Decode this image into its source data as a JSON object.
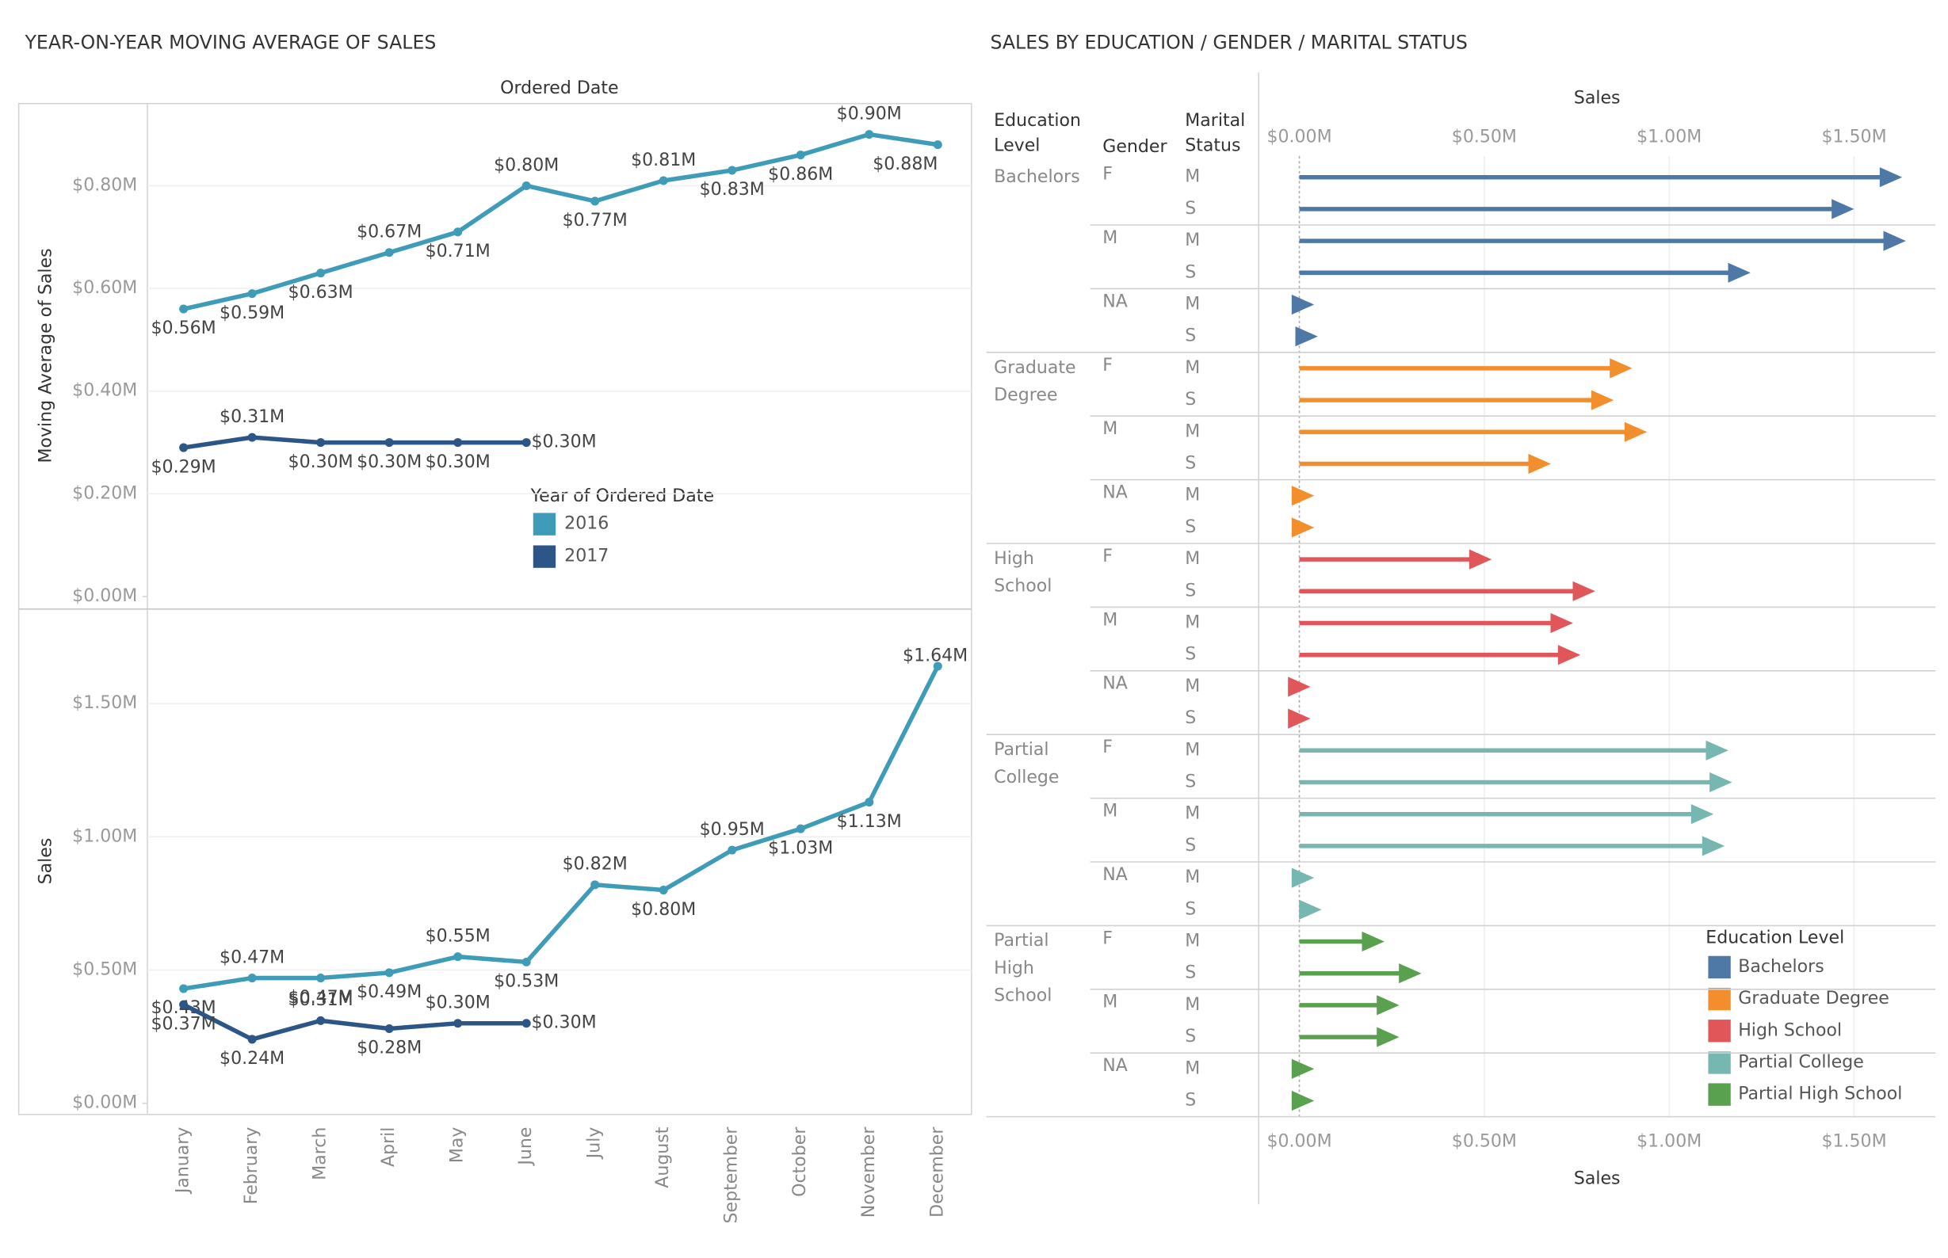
{
  "chart_data": [
    {
      "type": "line",
      "title": "YEAR-ON-YEAR MOVING AVERAGE OF SALES",
      "xlabel": "Ordered Date",
      "ylabel": "Moving Average of Sales",
      "legend_title": "Year of Ordered Date",
      "series": [
        {
          "name": "2016",
          "color": "#3f9cb8",
          "values": [
            0.56,
            0.59,
            0.63,
            0.67,
            0.71,
            0.8,
            0.77,
            0.81,
            0.83,
            0.86,
            0.9,
            0.88
          ],
          "value_labels": [
            "$0.56M",
            "$0.59M",
            "$0.63M",
            "$0.67M",
            "$0.71M",
            "$0.80M",
            "$0.77M",
            "$0.81M",
            "$0.83M",
            "$0.86M",
            "$0.90M",
            "$0.88M"
          ]
        },
        {
          "name": "2017",
          "color": "#2b5687",
          "values": [
            0.29,
            0.31,
            0.3,
            0.3,
            0.3,
            0.3,
            null,
            null,
            null,
            null,
            null,
            null
          ],
          "value_labels": [
            "$0.29M",
            "$0.31M",
            "$0.30M",
            "$0.30M",
            "$0.30M",
            "$0.30M",
            null,
            null,
            null,
            null,
            null,
            null
          ]
        }
      ],
      "ylim": [
        0,
        0.96
      ],
      "yticks": [
        {
          "value": 0,
          "label": "$0.00M"
        },
        {
          "value": 0.2,
          "label": "$0.20M"
        },
        {
          "value": 0.4,
          "label": "$0.40M"
        },
        {
          "value": 0.6,
          "label": "$0.60M"
        },
        {
          "value": 0.8,
          "label": "$0.80M"
        }
      ],
      "grid": true
    },
    {
      "type": "line",
      "ylabel": "Sales",
      "categories": [
        "January",
        "February",
        "March",
        "April",
        "May",
        "June",
        "July",
        "August",
        "September",
        "October",
        "November",
        "December"
      ],
      "series": [
        {
          "color": "#3f9cb8",
          "values": [
            0.43,
            0.47,
            0.47,
            0.49,
            0.55,
            0.53,
            0.82,
            0.8,
            0.95,
            1.03,
            1.13,
            1.64
          ],
          "value_labels": [
            "$0.43M",
            "$0.47M",
            "$0.47M",
            "$0.49M",
            "$0.55M",
            "$0.53M",
            "$0.82M",
            "$0.80M",
            "$0.95M",
            "$1.03M",
            "$1.13M",
            "$1.64M"
          ]
        },
        {
          "color": "#2b5687",
          "values": [
            0.37,
            0.24,
            0.31,
            0.28,
            0.3,
            0.3,
            null,
            null,
            null,
            null,
            null,
            null
          ],
          "value_labels": [
            "$0.37M",
            "$0.24M",
            "$0.31M",
            "$0.28M",
            "$0.30M",
            "$0.30M",
            null,
            null,
            null,
            null,
            null,
            null
          ]
        }
      ],
      "ylim": [
        0,
        1.85
      ],
      "yticks": [
        {
          "value": 0,
          "label": "$0.00M"
        },
        {
          "value": 0.5,
          "label": "$0.50M"
        },
        {
          "value": 1.0,
          "label": "$1.00M"
        },
        {
          "value": 1.5,
          "label": "$1.50M"
        }
      ],
      "grid": true
    },
    {
      "type": "arrow-bar",
      "orientation": "horizontal",
      "title": "SALES BY EDUCATION / GENDER / MARITAL STATUS",
      "row_headers": [
        "Education Level",
        "Gender",
        "Marital Status"
      ],
      "xlabel": "Sales",
      "genders": [
        "F",
        "M",
        "NA"
      ],
      "marital_status": [
        "M",
        "S"
      ],
      "legend_title": "Education Level",
      "series": [
        {
          "name": "Bachelors",
          "color": "#4e79a7",
          "values": [
            1.63,
            1.5,
            1.64,
            1.22,
            0.04,
            0.05
          ]
        },
        {
          "name": "Graduate Degree",
          "color": "#f28e2b",
          "values": [
            0.9,
            0.85,
            0.94,
            0.68,
            0.04,
            0.04
          ]
        },
        {
          "name": "High School",
          "color": "#e15759",
          "values": [
            0.52,
            0.8,
            0.74,
            0.76,
            0.03,
            0.03
          ]
        },
        {
          "name": "Partial College",
          "color": "#76b7b2",
          "values": [
            1.16,
            1.17,
            1.12,
            1.15,
            0.04,
            0.06
          ]
        },
        {
          "name": "Partial High School",
          "color": "#59a14f",
          "values": [
            0.23,
            0.33,
            0.27,
            0.27,
            0.04,
            0.04
          ]
        }
      ],
      "xlim": [
        -0.11,
        1.72
      ],
      "xticks": [
        {
          "value": 0,
          "label": "$0.00M"
        },
        {
          "value": 0.5,
          "label": "$0.50M"
        },
        {
          "value": 1.0,
          "label": "$1.00M"
        },
        {
          "value": 1.5,
          "label": "$1.50M"
        }
      ],
      "grid": true
    }
  ]
}
